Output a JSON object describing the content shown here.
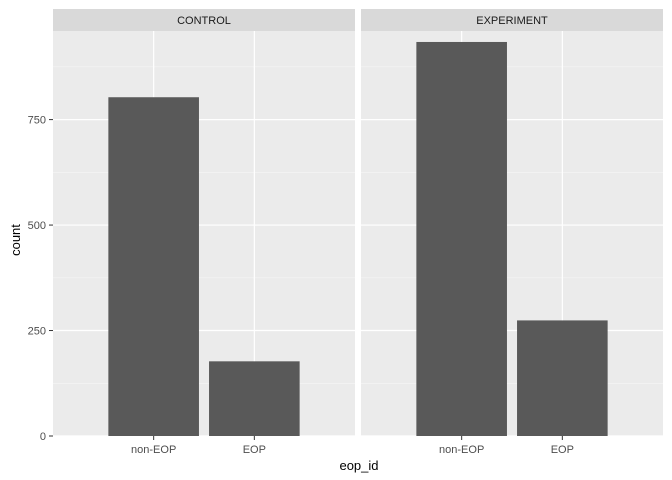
{
  "chart_data": {
    "type": "bar",
    "title": "",
    "xlabel": "eop_id",
    "ylabel": "count",
    "categories": [
      "non-EOP",
      "EOP"
    ],
    "ylim": [
      0,
      960
    ],
    "y_ticks": [
      0,
      250,
      500,
      750
    ],
    "y_tick_labels": [
      "0",
      "250",
      "500",
      "750"
    ],
    "grid": true,
    "facets": [
      {
        "label": "CONTROL",
        "values": [
          803,
          177
        ]
      },
      {
        "label": "EXPERIMENT",
        "values": [
          934,
          274
        ]
      }
    ]
  },
  "colors": {
    "bar": "#595959",
    "panel": "#ebebeb",
    "strip": "#d9d9d9",
    "grid_major": "#ffffff",
    "grid_minor": "#f5f5f5",
    "tick": "#333333"
  }
}
